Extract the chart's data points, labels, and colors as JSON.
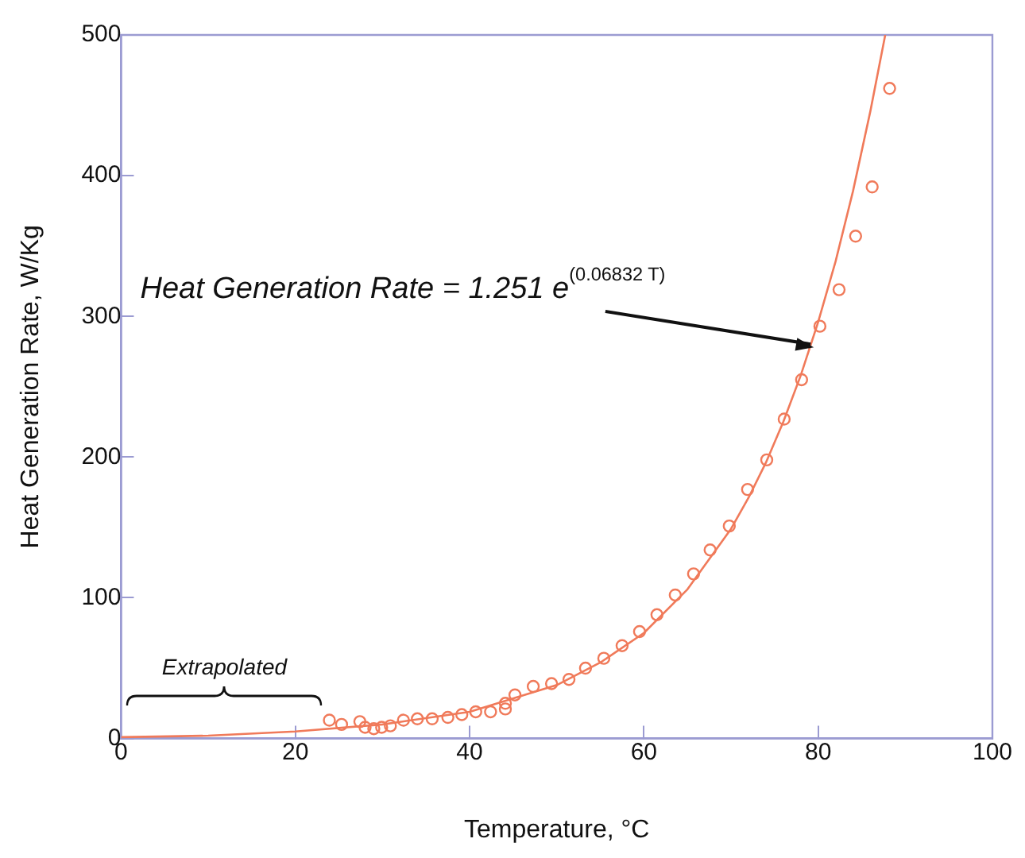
{
  "chart_data": {
    "type": "scatter",
    "xlabel": "Temperature, °C",
    "ylabel": "Heat Generation Rate, W/Kg",
    "xlim": [
      0,
      100
    ],
    "xticks": [
      0,
      20,
      40,
      60,
      80,
      100
    ],
    "ylim": [
      0,
      500
    ],
    "yticks": [
      0,
      100,
      200,
      300,
      400,
      500
    ],
    "grid": false,
    "legend": false,
    "marker": "circle",
    "series": [
      {
        "color": "#f07a5a",
        "x": [
          23.9,
          25.3,
          27.4,
          28,
          29,
          29.9,
          30.9,
          32.4,
          34,
          35.7,
          37.5,
          39.1,
          40.7,
          42.4,
          44.1,
          44.1,
          45.2,
          47.3,
          49.4,
          51.4,
          53.3,
          55.4,
          57.5,
          59.5,
          61.5,
          63.6,
          65.7,
          67.6,
          69.8,
          71.9,
          74.1,
          76.1,
          78.1,
          80.2,
          82.4,
          84.3,
          86.2,
          88.2
        ],
        "values": [
          13,
          10,
          12,
          8,
          7,
          8,
          9,
          13,
          14,
          14,
          15,
          17,
          19,
          19,
          21,
          25,
          31,
          37,
          39,
          42,
          50,
          57,
          66,
          76,
          88,
          102,
          117,
          134,
          151,
          177,
          198,
          227,
          255,
          293,
          319,
          357,
          392,
          462
        ]
      },
      {
        "type": "line",
        "color": "#f07a5a",
        "marker": "none",
        "x": [
          0,
          10,
          20,
          30,
          40,
          50,
          55,
          60,
          65,
          70,
          72,
          74,
          76,
          78,
          80,
          82,
          84,
          86,
          87.7
        ],
        "values": [
          1,
          2,
          5,
          10,
          19,
          38,
          54,
          75,
          106,
          149,
          171,
          196,
          225,
          258,
          296,
          339,
          389,
          446,
          500
        ]
      }
    ],
    "annotations": [
      {
        "text": "Heat Generation Rate = 1.251 e$^{(0.06832 T)}$",
        "x": 79.5,
        "y": 278
      },
      "Extrapolated"
    ]
  }
}
